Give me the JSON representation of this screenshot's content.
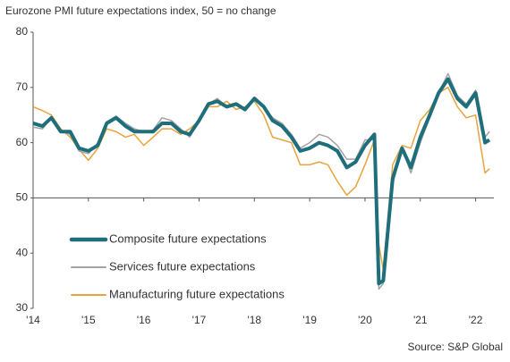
{
  "chart_data": {
    "type": "line",
    "title": "Eurozone PMI future expectations index, 50 = no change",
    "source": "Source: S&P Global",
    "x": [
      2014,
      2014.17,
      2014.33,
      2014.5,
      2014.67,
      2014.83,
      2015,
      2015.17,
      2015.33,
      2015.5,
      2015.67,
      2015.83,
      2016,
      2016.17,
      2016.33,
      2016.5,
      2016.67,
      2016.83,
      2017,
      2017.17,
      2017.33,
      2017.5,
      2017.67,
      2017.83,
      2018,
      2018.17,
      2018.33,
      2018.5,
      2018.67,
      2018.83,
      2019,
      2019.17,
      2019.33,
      2019.5,
      2019.67,
      2019.83,
      2020,
      2020.17,
      2020.25,
      2020.33,
      2020.5,
      2020.67,
      2020.83,
      2021,
      2021.17,
      2021.33,
      2021.5,
      2021.67,
      2021.83,
      2022,
      2022.17,
      2022.25
    ],
    "series": [
      {
        "name": "Composite future expectations",
        "color": "#1f6e7c",
        "width": 4,
        "values": [
          63.5,
          63,
          64.5,
          62,
          62,
          59,
          58.5,
          59.5,
          63.5,
          64.5,
          63,
          62,
          62,
          62,
          63.5,
          63.5,
          62,
          61.5,
          64,
          67,
          67.5,
          66.5,
          67,
          66,
          68,
          66.5,
          64,
          63,
          61,
          58.5,
          59,
          60,
          59.5,
          58.5,
          55.5,
          56.5,
          59.5,
          61.5,
          34.5,
          35,
          53.5,
          59,
          55.5,
          61,
          65,
          69,
          71.5,
          68,
          66.5,
          69,
          60,
          60.5
        ]
      },
      {
        "name": "Services future expectations",
        "color": "#a3a3a3",
        "width": 1.5,
        "values": [
          62.8,
          62.5,
          64.5,
          62,
          61.5,
          58.5,
          58,
          60,
          63.8,
          64.8,
          63.5,
          62.5,
          62,
          62.3,
          64.5,
          64,
          62.5,
          61,
          64,
          67,
          68,
          66.5,
          67,
          66,
          68,
          66.5,
          64.5,
          63.5,
          61.5,
          59,
          60,
          61.5,
          61,
          59.5,
          57,
          57,
          60.5,
          60.5,
          33.5,
          34.5,
          52.5,
          59,
          54.5,
          60,
          64.5,
          69,
          72.5,
          68.5,
          67,
          69.5,
          61,
          62
        ]
      },
      {
        "name": "Manufacturing future expectations",
        "color": "#e8a43c",
        "width": 1.5,
        "values": [
          66.5,
          65.8,
          65,
          62.5,
          61,
          58.8,
          56.8,
          59,
          62.5,
          62,
          61,
          61.5,
          59.5,
          61,
          62.5,
          62.5,
          61.5,
          62.5,
          64,
          66.5,
          66.5,
          67.5,
          66,
          66.5,
          67.5,
          65,
          61,
          60.5,
          60,
          56,
          56,
          56.5,
          56,
          53,
          50.5,
          52,
          56,
          60.5,
          41.5,
          37,
          56,
          59.5,
          59,
          64,
          66,
          69,
          70,
          66.5,
          64.5,
          65,
          54.5,
          55.3
        ]
      }
    ],
    "xlim": [
      2014,
      2022.33
    ],
    "xticks": [
      {
        "value": 2014,
        "label": "'14"
      },
      {
        "value": 2015,
        "label": "'15"
      },
      {
        "value": 2016,
        "label": "'16"
      },
      {
        "value": 2017,
        "label": "'17"
      },
      {
        "value": 2018,
        "label": "'18"
      },
      {
        "value": 2019,
        "label": "'19"
      },
      {
        "value": 2020,
        "label": "'20"
      },
      {
        "value": 2021,
        "label": "'21"
      },
      {
        "value": 2022,
        "label": "'22"
      }
    ],
    "ylim": [
      30,
      80
    ],
    "yticks": [
      30,
      40,
      50,
      60,
      70,
      80
    ],
    "baseline": 50,
    "legend": "lower left"
  }
}
